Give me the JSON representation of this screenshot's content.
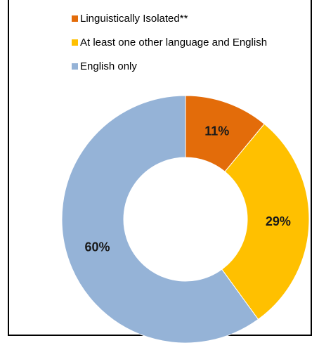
{
  "chart_data": {
    "type": "pie",
    "variant": "donut",
    "categories": [
      "Linguistically Isolated**",
      "At least one other language and English",
      "English only"
    ],
    "values": [
      11,
      29,
      60
    ],
    "labels": [
      "11%",
      "29%",
      "60%"
    ],
    "colors": [
      "#E36C0A",
      "#FFC000",
      "#95B3D7"
    ],
    "title": "",
    "legend_position": "top"
  },
  "legend": {
    "items": [
      {
        "label": "Linguistically Isolated**",
        "color": "#E36C0A"
      },
      {
        "label": "At least one other language and English",
        "color": "#FFC000"
      },
      {
        "label": "English only",
        "color": "#95B3D7"
      }
    ]
  }
}
